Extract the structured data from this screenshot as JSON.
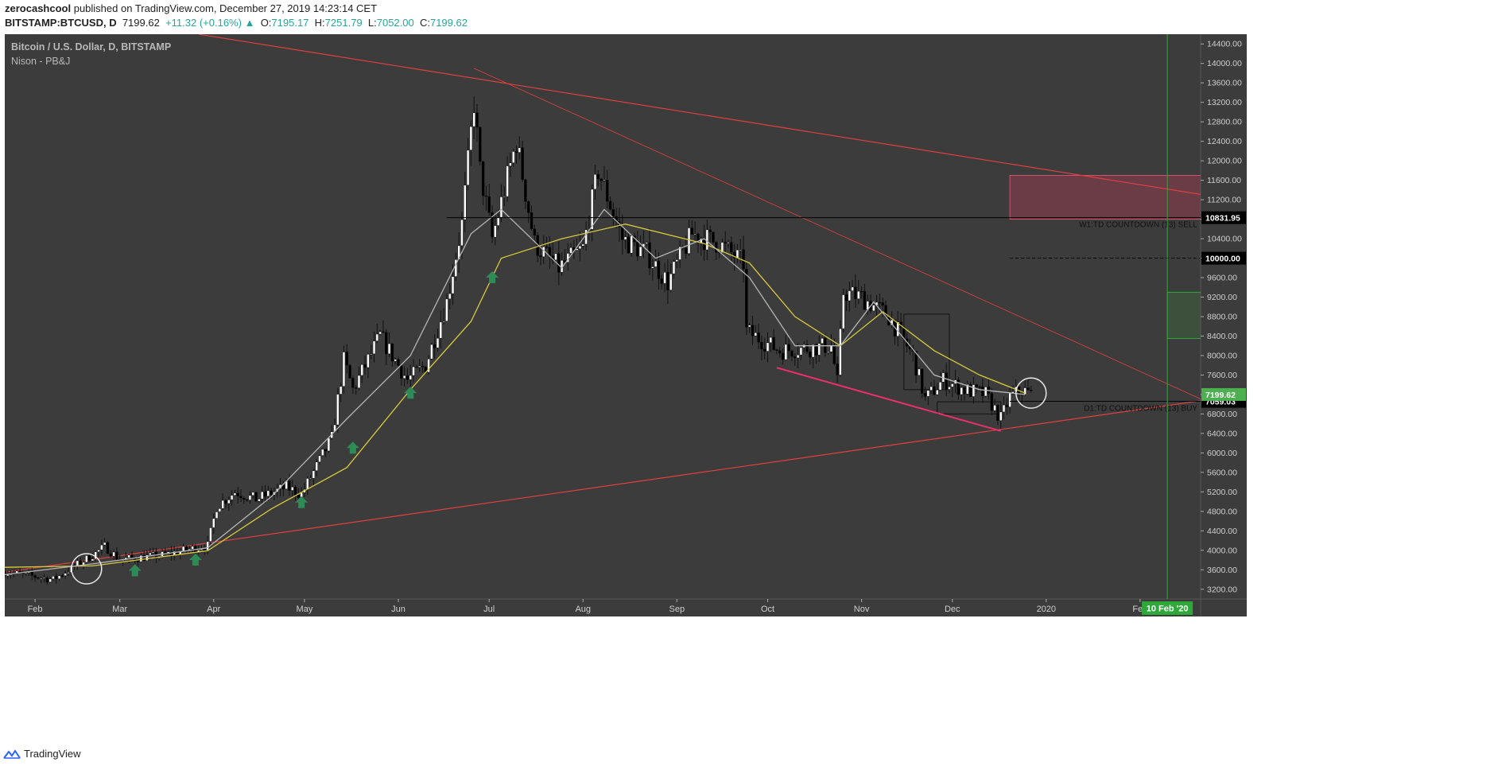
{
  "header": {
    "author": "zerocashcool",
    "published_text": "published on TradingView.com, December 27, 2019 14:23:14 CET",
    "symbol": "BITSTAMP:BTCUSD, D",
    "last": "7199.62",
    "change": "+11.32 (+0.16%)",
    "o_label": "O:",
    "o": "7195.17",
    "h_label": "H:",
    "h": "7251.79",
    "l_label": "L:",
    "l": "7052.00",
    "c_label": "C:",
    "c": "7199.62"
  },
  "pane": {
    "title": "Bitcoin / U.S. Dollar, D, BITSTAMP",
    "indicator": "Nison - PB&J"
  },
  "footer": {
    "brand": "TradingView"
  },
  "colors": {
    "background": "#3c3c3c",
    "candle_up": "#ffffff",
    "candle_down": "#000000",
    "ma_fast": "#b5b5b5",
    "ma_slow": "#d8c93c",
    "trendline": "#e04040",
    "wedge_line": "#e8306b",
    "signal_arrow": "#2e8b57",
    "price_badge": "#4caf50",
    "future_line": "#2fa83a"
  },
  "chart_data": {
    "type": "candlestick",
    "symbol": "BITSTAMP:BTCUSD",
    "interval": "D",
    "x_ticks": [
      "Feb",
      "Mar",
      "Apr",
      "May",
      "Jun",
      "Jul",
      "Aug",
      "Sep",
      "Oct",
      "Nov",
      "Dec",
      "2020",
      "Feb"
    ],
    "y_ticks": [
      "3200.00",
      "3600.00",
      "4000.00",
      "4400.00",
      "4800.00",
      "5200.00",
      "5600.00",
      "6000.00",
      "6400.00",
      "6800.00",
      "7200.00",
      "7600.00",
      "8000.00",
      "8400.00",
      "8800.00",
      "9200.00",
      "9600.00",
      "10000.00",
      "10400.00",
      "10800.00",
      "11200.00",
      "11600.00",
      "12000.00",
      "12400.00",
      "12800.00",
      "13200.00",
      "13600.00",
      "14000.00",
      "14400.00"
    ],
    "ylim": [
      3000,
      14600
    ],
    "x_range": [
      "2019-01-22",
      "2020-02-21"
    ],
    "price_path": [
      [
        "2019-01-22",
        3560
      ],
      [
        "2019-02-07",
        3400
      ],
      [
        "2019-02-20",
        3900
      ],
      [
        "2019-02-24",
        4080
      ],
      [
        "2019-03-01",
        3810
      ],
      [
        "2019-03-15",
        3900
      ],
      [
        "2019-03-30",
        4100
      ],
      [
        "2019-04-02",
        4900
      ],
      [
        "2019-04-08",
        5200
      ],
      [
        "2019-04-15",
        5050
      ],
      [
        "2019-04-25",
        5300
      ],
      [
        "2019-04-30",
        5150
      ],
      [
        "2019-05-10",
        6300
      ],
      [
        "2019-05-14",
        7900
      ],
      [
        "2019-05-17",
        7300
      ],
      [
        "2019-05-26",
        8400
      ],
      [
        "2019-06-04",
        7500
      ],
      [
        "2019-06-10",
        7800
      ],
      [
        "2019-06-17",
        9100
      ],
      [
        "2019-06-22",
        10700
      ],
      [
        "2019-06-26",
        13200
      ],
      [
        "2019-06-28",
        11800
      ],
      [
        "2019-07-02",
        10400
      ],
      [
        "2019-07-10",
        12400
      ],
      [
        "2019-07-16",
        10300
      ],
      [
        "2019-07-24",
        9800
      ],
      [
        "2019-08-01",
        10200
      ],
      [
        "2019-08-06",
        11800
      ],
      [
        "2019-08-14",
        10400
      ],
      [
        "2019-08-22",
        10100
      ],
      [
        "2019-08-29",
        9500
      ],
      [
        "2019-09-06",
        10500
      ],
      [
        "2019-09-15",
        10300
      ],
      [
        "2019-09-23",
        9900
      ],
      [
        "2019-09-24",
        8500
      ],
      [
        "2019-10-05",
        8100
      ],
      [
        "2019-10-22",
        8200
      ],
      [
        "2019-10-24",
        7450
      ],
      [
        "2019-10-26",
        9300
      ],
      [
        "2019-11-01",
        9200
      ],
      [
        "2019-11-10",
        8800
      ],
      [
        "2019-11-18",
        8000
      ],
      [
        "2019-11-22",
        7100
      ],
      [
        "2019-11-28",
        7500
      ],
      [
        "2019-12-05",
        7300
      ],
      [
        "2019-12-12",
        7200
      ],
      [
        "2019-12-17",
        6700
      ],
      [
        "2019-12-20",
        7150
      ],
      [
        "2019-12-24",
        7300
      ],
      [
        "2019-12-27",
        7199.62
      ]
    ],
    "ma_slow_path": [
      [
        "2019-01-22",
        3650
      ],
      [
        "2019-02-20",
        3680
      ],
      [
        "2019-03-30",
        3990
      ],
      [
        "2019-04-20",
        4850
      ],
      [
        "2019-05-15",
        5700
      ],
      [
        "2019-06-05",
        7300
      ],
      [
        "2019-06-25",
        8700
      ],
      [
        "2019-07-05",
        10000
      ],
      [
        "2019-07-25",
        10400
      ],
      [
        "2019-08-15",
        10700
      ],
      [
        "2019-09-10",
        10300
      ],
      [
        "2019-09-25",
        9900
      ],
      [
        "2019-10-10",
        8800
      ],
      [
        "2019-10-25",
        8200
      ],
      [
        "2019-11-08",
        8900
      ],
      [
        "2019-11-25",
        8100
      ],
      [
        "2019-12-10",
        7600
      ],
      [
        "2019-12-25",
        7230
      ]
    ],
    "ma_fast_path": [
      [
        "2019-01-22",
        3500
      ],
      [
        "2019-02-20",
        3720
      ],
      [
        "2019-03-30",
        4050
      ],
      [
        "2019-04-20",
        5100
      ],
      [
        "2019-05-15",
        6700
      ],
      [
        "2019-06-05",
        8000
      ],
      [
        "2019-06-25",
        10500
      ],
      [
        "2019-07-05",
        11000
      ],
      [
        "2019-07-25",
        9800
      ],
      [
        "2019-08-08",
        11000
      ],
      [
        "2019-08-25",
        10000
      ],
      [
        "2019-09-10",
        10400
      ],
      [
        "2019-09-25",
        9600
      ],
      [
        "2019-10-10",
        8200
      ],
      [
        "2019-10-25",
        8200
      ],
      [
        "2019-11-05",
        9100
      ],
      [
        "2019-11-25",
        7600
      ],
      [
        "2019-12-10",
        7300
      ],
      [
        "2019-12-25",
        7200
      ]
    ],
    "horizontal_levels": [
      {
        "price": 10831.95,
        "label": "10831.95",
        "style": "solid",
        "annotation": "W1:TD COUNTDOWN (13) SELL"
      },
      {
        "price": 10000.0,
        "label": "10000.00",
        "style": "dashed"
      },
      {
        "price": 7059.03,
        "label": "7059.03",
        "style": "solid",
        "annotation": "D1:TD COUNTDOWN (13) BUY"
      }
    ],
    "current_price": {
      "price": 7199.62,
      "label": "7199.62"
    },
    "trendlines": [
      {
        "from": [
          "2019-01-22",
          3550
        ],
        "to": [
          "2020-02-22",
          7080
        ],
        "kind": "support"
      },
      {
        "from": [
          "2019-03-27",
          14600
        ],
        "to": [
          "2020-02-22",
          11300
        ],
        "kind": "resistance"
      },
      {
        "from": [
          "2019-06-26",
          13900
        ],
        "to": [
          "2020-02-22",
          7080
        ],
        "kind": "descending"
      },
      {
        "from": [
          "2019-10-04",
          7750
        ],
        "to": [
          "2019-12-17",
          6450
        ],
        "kind": "wedge"
      }
    ],
    "boxes": [
      {
        "from": [
          "2019-12-20",
          10800
        ],
        "to": [
          "2020-02-22",
          11700
        ],
        "kind": "target-zone"
      },
      {
        "from": [
          "2019-11-15",
          7300
        ],
        "to": [
          "2019-11-30",
          8850
        ],
        "kind": "outline"
      },
      {
        "from": [
          "2019-11-26",
          6800
        ],
        "to": [
          "2019-12-17",
          7050
        ],
        "kind": "outline"
      },
      {
        "from": [
          "2020-02-10",
          8350
        ],
        "to": [
          "2020-02-22",
          9300
        ],
        "kind": "projection"
      }
    ],
    "circles": [
      {
        "date": "2019-02-18",
        "price": 3620
      },
      {
        "date": "2019-12-27",
        "price": 7230
      }
    ],
    "signal_arrows": [
      {
        "date": "2019-03-06",
        "price": 3580
      },
      {
        "date": "2019-03-26",
        "price": 3800
      },
      {
        "date": "2019-04-30",
        "price": 4980
      },
      {
        "date": "2019-05-17",
        "price": 6100
      },
      {
        "date": "2019-06-05",
        "price": 7230
      },
      {
        "date": "2019-07-02",
        "price": 9600
      }
    ],
    "future_marker": {
      "date": "2020-02-10",
      "label": "10 Feb '20"
    }
  }
}
